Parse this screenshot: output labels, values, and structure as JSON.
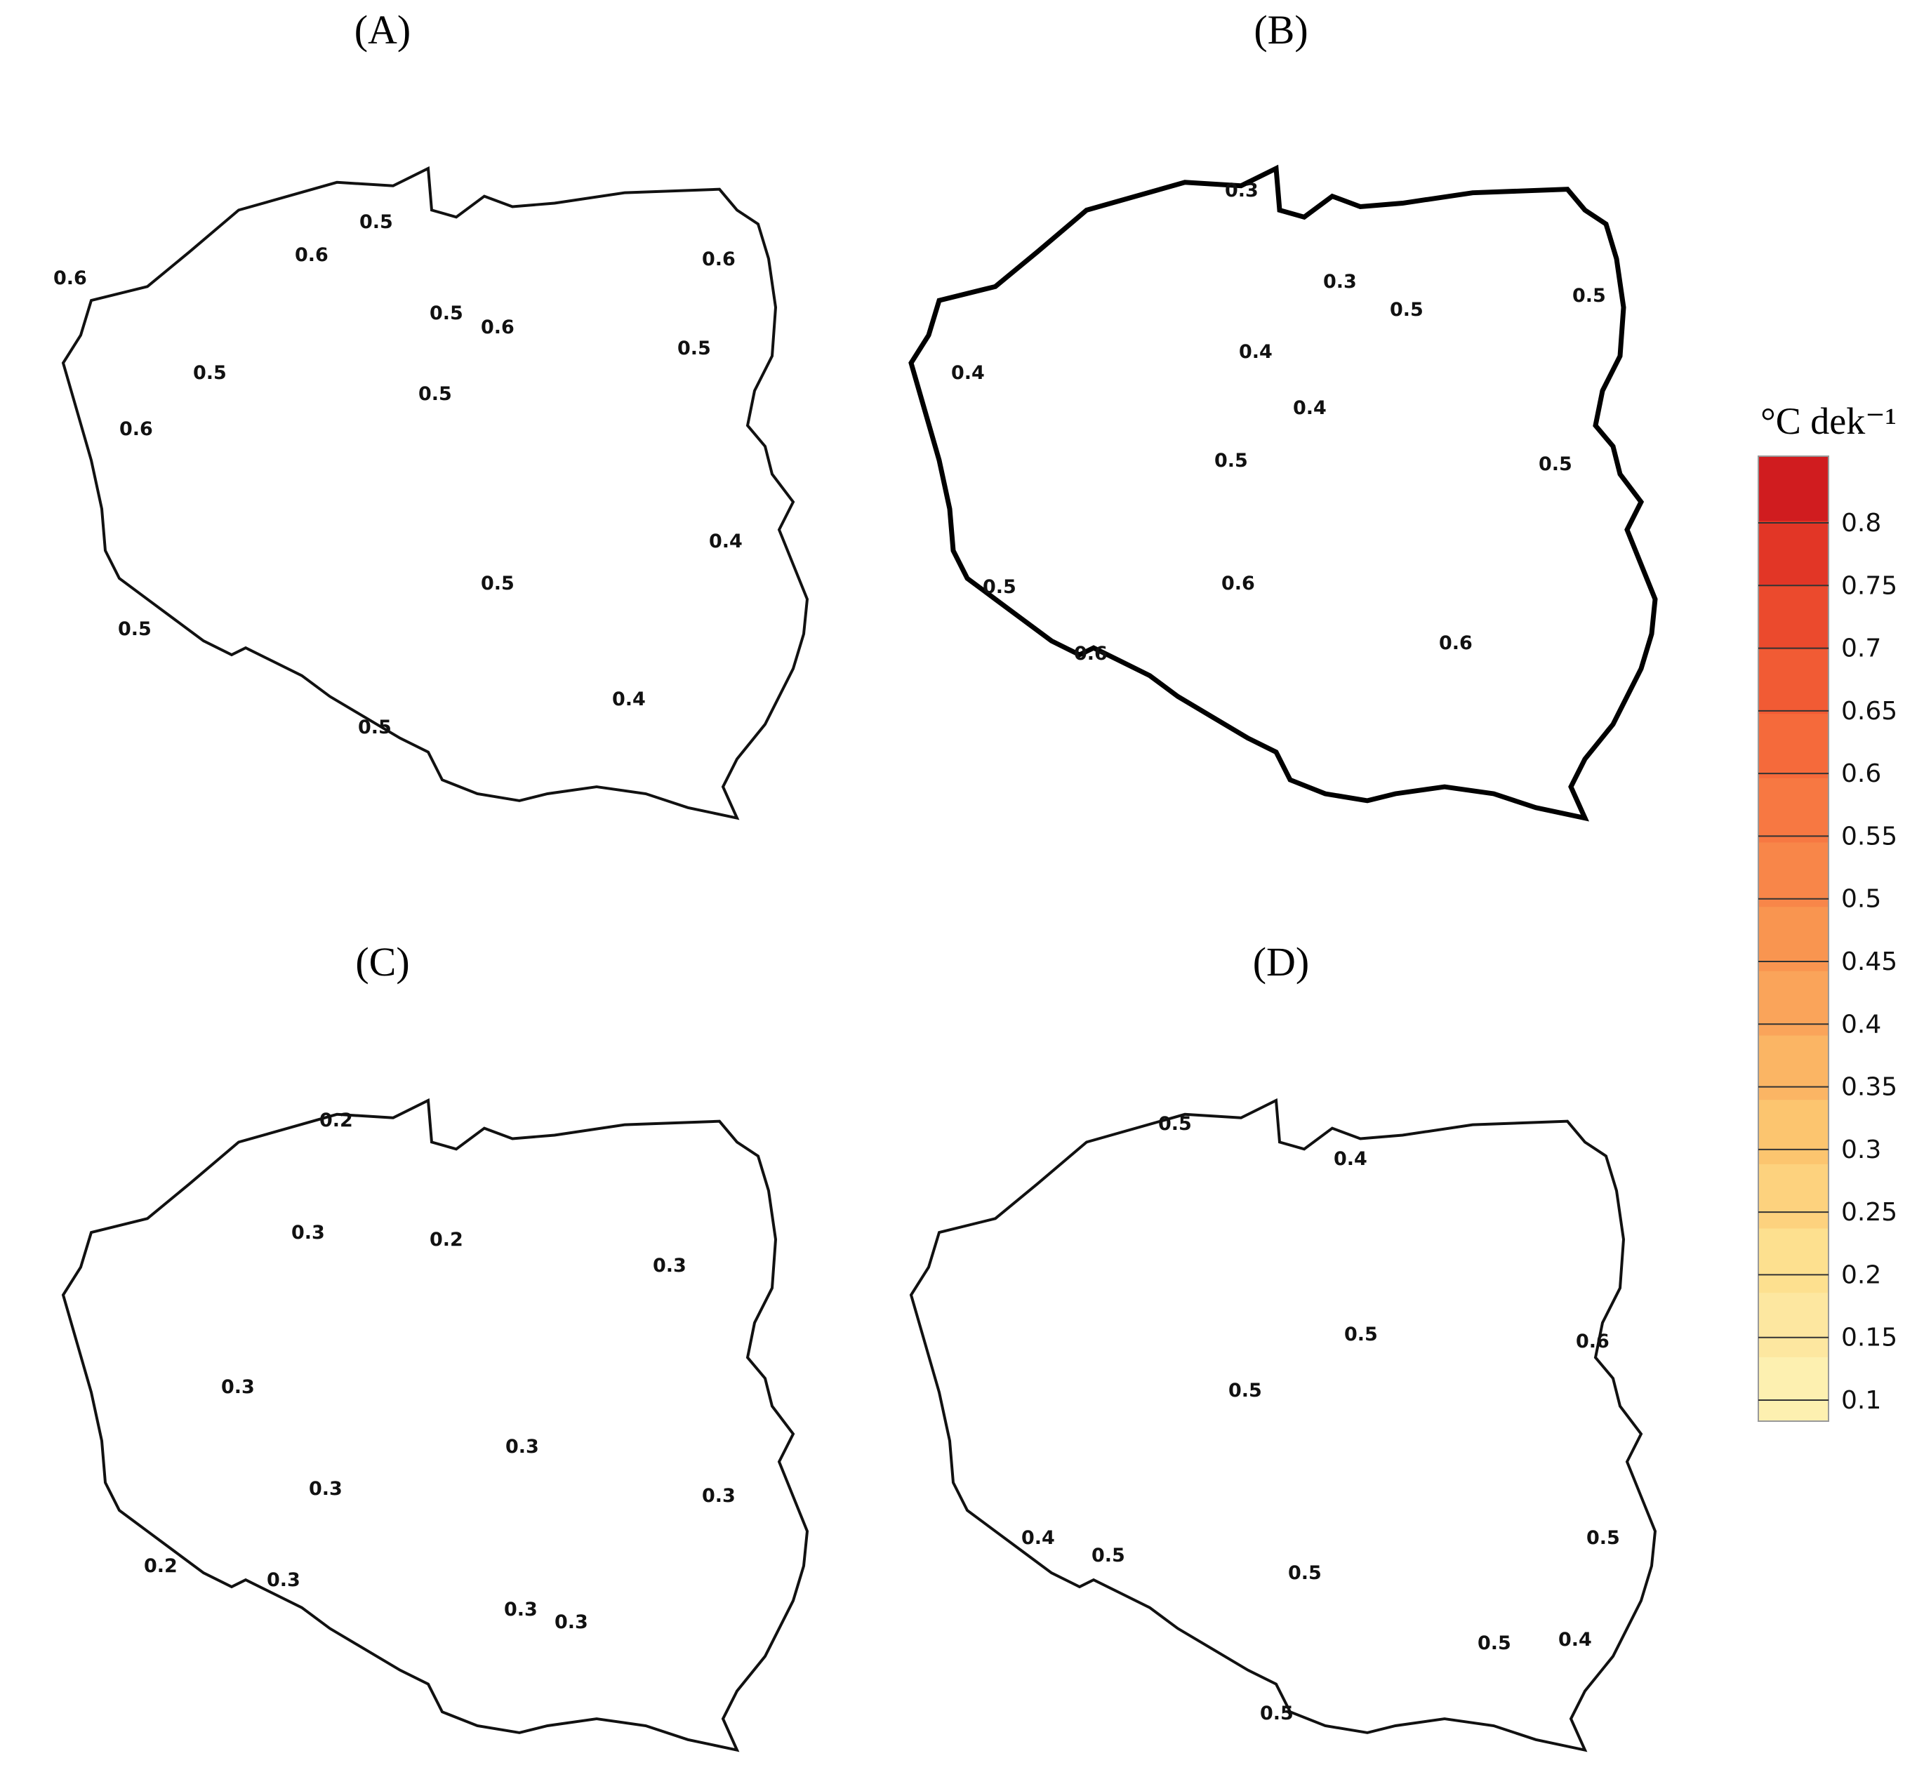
{
  "panels": [
    {
      "id": "A",
      "title": "(A)",
      "fill_color": "#f58c48",
      "hatched": true,
      "hot_spots": [
        {
          "color": "#ee5a32",
          "label": "0.6"
        },
        {
          "color": "#ec5630",
          "label": "0.6"
        },
        {
          "color": "#f9a55c",
          "label": "0.4"
        }
      ],
      "contour_labels": [
        "0.6",
        "0.6",
        "0.5",
        "0.5",
        "0.6",
        "0.6",
        "0.5",
        "0.5",
        "0.6",
        "0.5",
        "0.4",
        "0.5",
        "0.4",
        "0.5",
        "0.5"
      ]
    },
    {
      "id": "B",
      "title": "(B)",
      "fill_color": "#f88544",
      "hatched": true,
      "hot_spots": [
        {
          "color": "#fcd78a",
          "label": "0.3"
        },
        {
          "color": "#e8442a",
          "label": "0.6"
        },
        {
          "color": "#fab867",
          "label": "0.4"
        }
      ],
      "contour_labels": [
        "0.3",
        "0.3",
        "0.5",
        "0.5",
        "0.4",
        "0.4",
        "0.4",
        "0.5",
        "0.5",
        "0.6",
        "0.5",
        "0.6",
        "0.6"
      ]
    },
    {
      "id": "C",
      "title": "(C)",
      "fill_color": "#fcd078",
      "hatched": true,
      "hot_spots": [
        {
          "color": "#feeeaa",
          "label": "0.2"
        },
        {
          "color": "#fbbd66",
          "label": "0.3"
        },
        {
          "color": "#fbbd66",
          "label": "0.3"
        }
      ],
      "contour_labels": [
        "0.2",
        "0.3",
        "0.2",
        "0.3",
        "0.3",
        "0.3",
        "0.3",
        "0.3",
        "0.2",
        "0.3",
        "0.3",
        "0.3"
      ]
    },
    {
      "id": "D",
      "title": "(D)",
      "fill_color": "#f68844",
      "hatched": true,
      "hot_spots": [
        {
          "color": "#ee5a32",
          "label": "0.6"
        },
        {
          "color": "#f9a05a",
          "label": "0.4"
        },
        {
          "color": "#fbba66",
          "label": "0.4"
        }
      ],
      "contour_labels": [
        "0.5",
        "0.4",
        "0.5",
        "0.6",
        "0.5",
        "0.5",
        "0.4",
        "0.5",
        "0.5",
        "0.5",
        "0.4",
        "0.5"
      ]
    }
  ],
  "legend": {
    "unit": "°C dek⁻¹",
    "ticks": [
      "0.8",
      "0.75",
      "0.7",
      "0.65",
      "0.6",
      "0.55",
      "0.5",
      "0.45",
      "0.4",
      "0.35",
      "0.3",
      "0.25",
      "0.2",
      "0.15",
      "0.1"
    ],
    "colors": [
      "#fdf0b0",
      "#fde7a0",
      "#fde08f",
      "#fdd27e",
      "#fcc56f",
      "#fbb564",
      "#faa45a",
      "#f99550",
      "#f88649",
      "#f77842",
      "#f56a3b",
      "#f15b34",
      "#eb4a2d",
      "#e23626",
      "#d01c1f"
    ]
  }
}
